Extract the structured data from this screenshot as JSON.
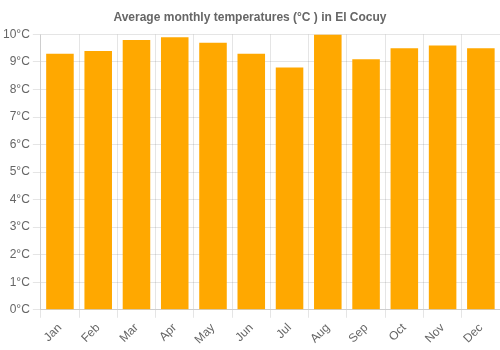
{
  "chart_data": {
    "type": "bar",
    "title": "Average monthly temperatures (°C ) in El Cocuy",
    "categories": [
      "Jan",
      "Feb",
      "Mar",
      "Apr",
      "May",
      "Jun",
      "Jul",
      "Aug",
      "Sep",
      "Oct",
      "Nov",
      "Dec"
    ],
    "values": [
      9.3,
      9.4,
      9.8,
      9.9,
      9.7,
      9.3,
      8.8,
      10.0,
      9.1,
      9.5,
      9.6,
      9.5
    ],
    "color": "#FFA800",
    "ylim": [
      0,
      10
    ],
    "yticks": [
      {
        "value": 0,
        "label": "0°C"
      },
      {
        "value": 1,
        "label": "1°C"
      },
      {
        "value": 2,
        "label": "2°C"
      },
      {
        "value": 3,
        "label": "3°C"
      },
      {
        "value": 4,
        "label": "4°C"
      },
      {
        "value": 5,
        "label": "5°C"
      },
      {
        "value": 6,
        "label": "6°C"
      },
      {
        "value": 7,
        "label": "7°C"
      },
      {
        "value": 8,
        "label": "8°C"
      },
      {
        "value": 9,
        "label": "9°C"
      },
      {
        "value": 10,
        "label": "10°C"
      }
    ],
    "grid": true
  }
}
